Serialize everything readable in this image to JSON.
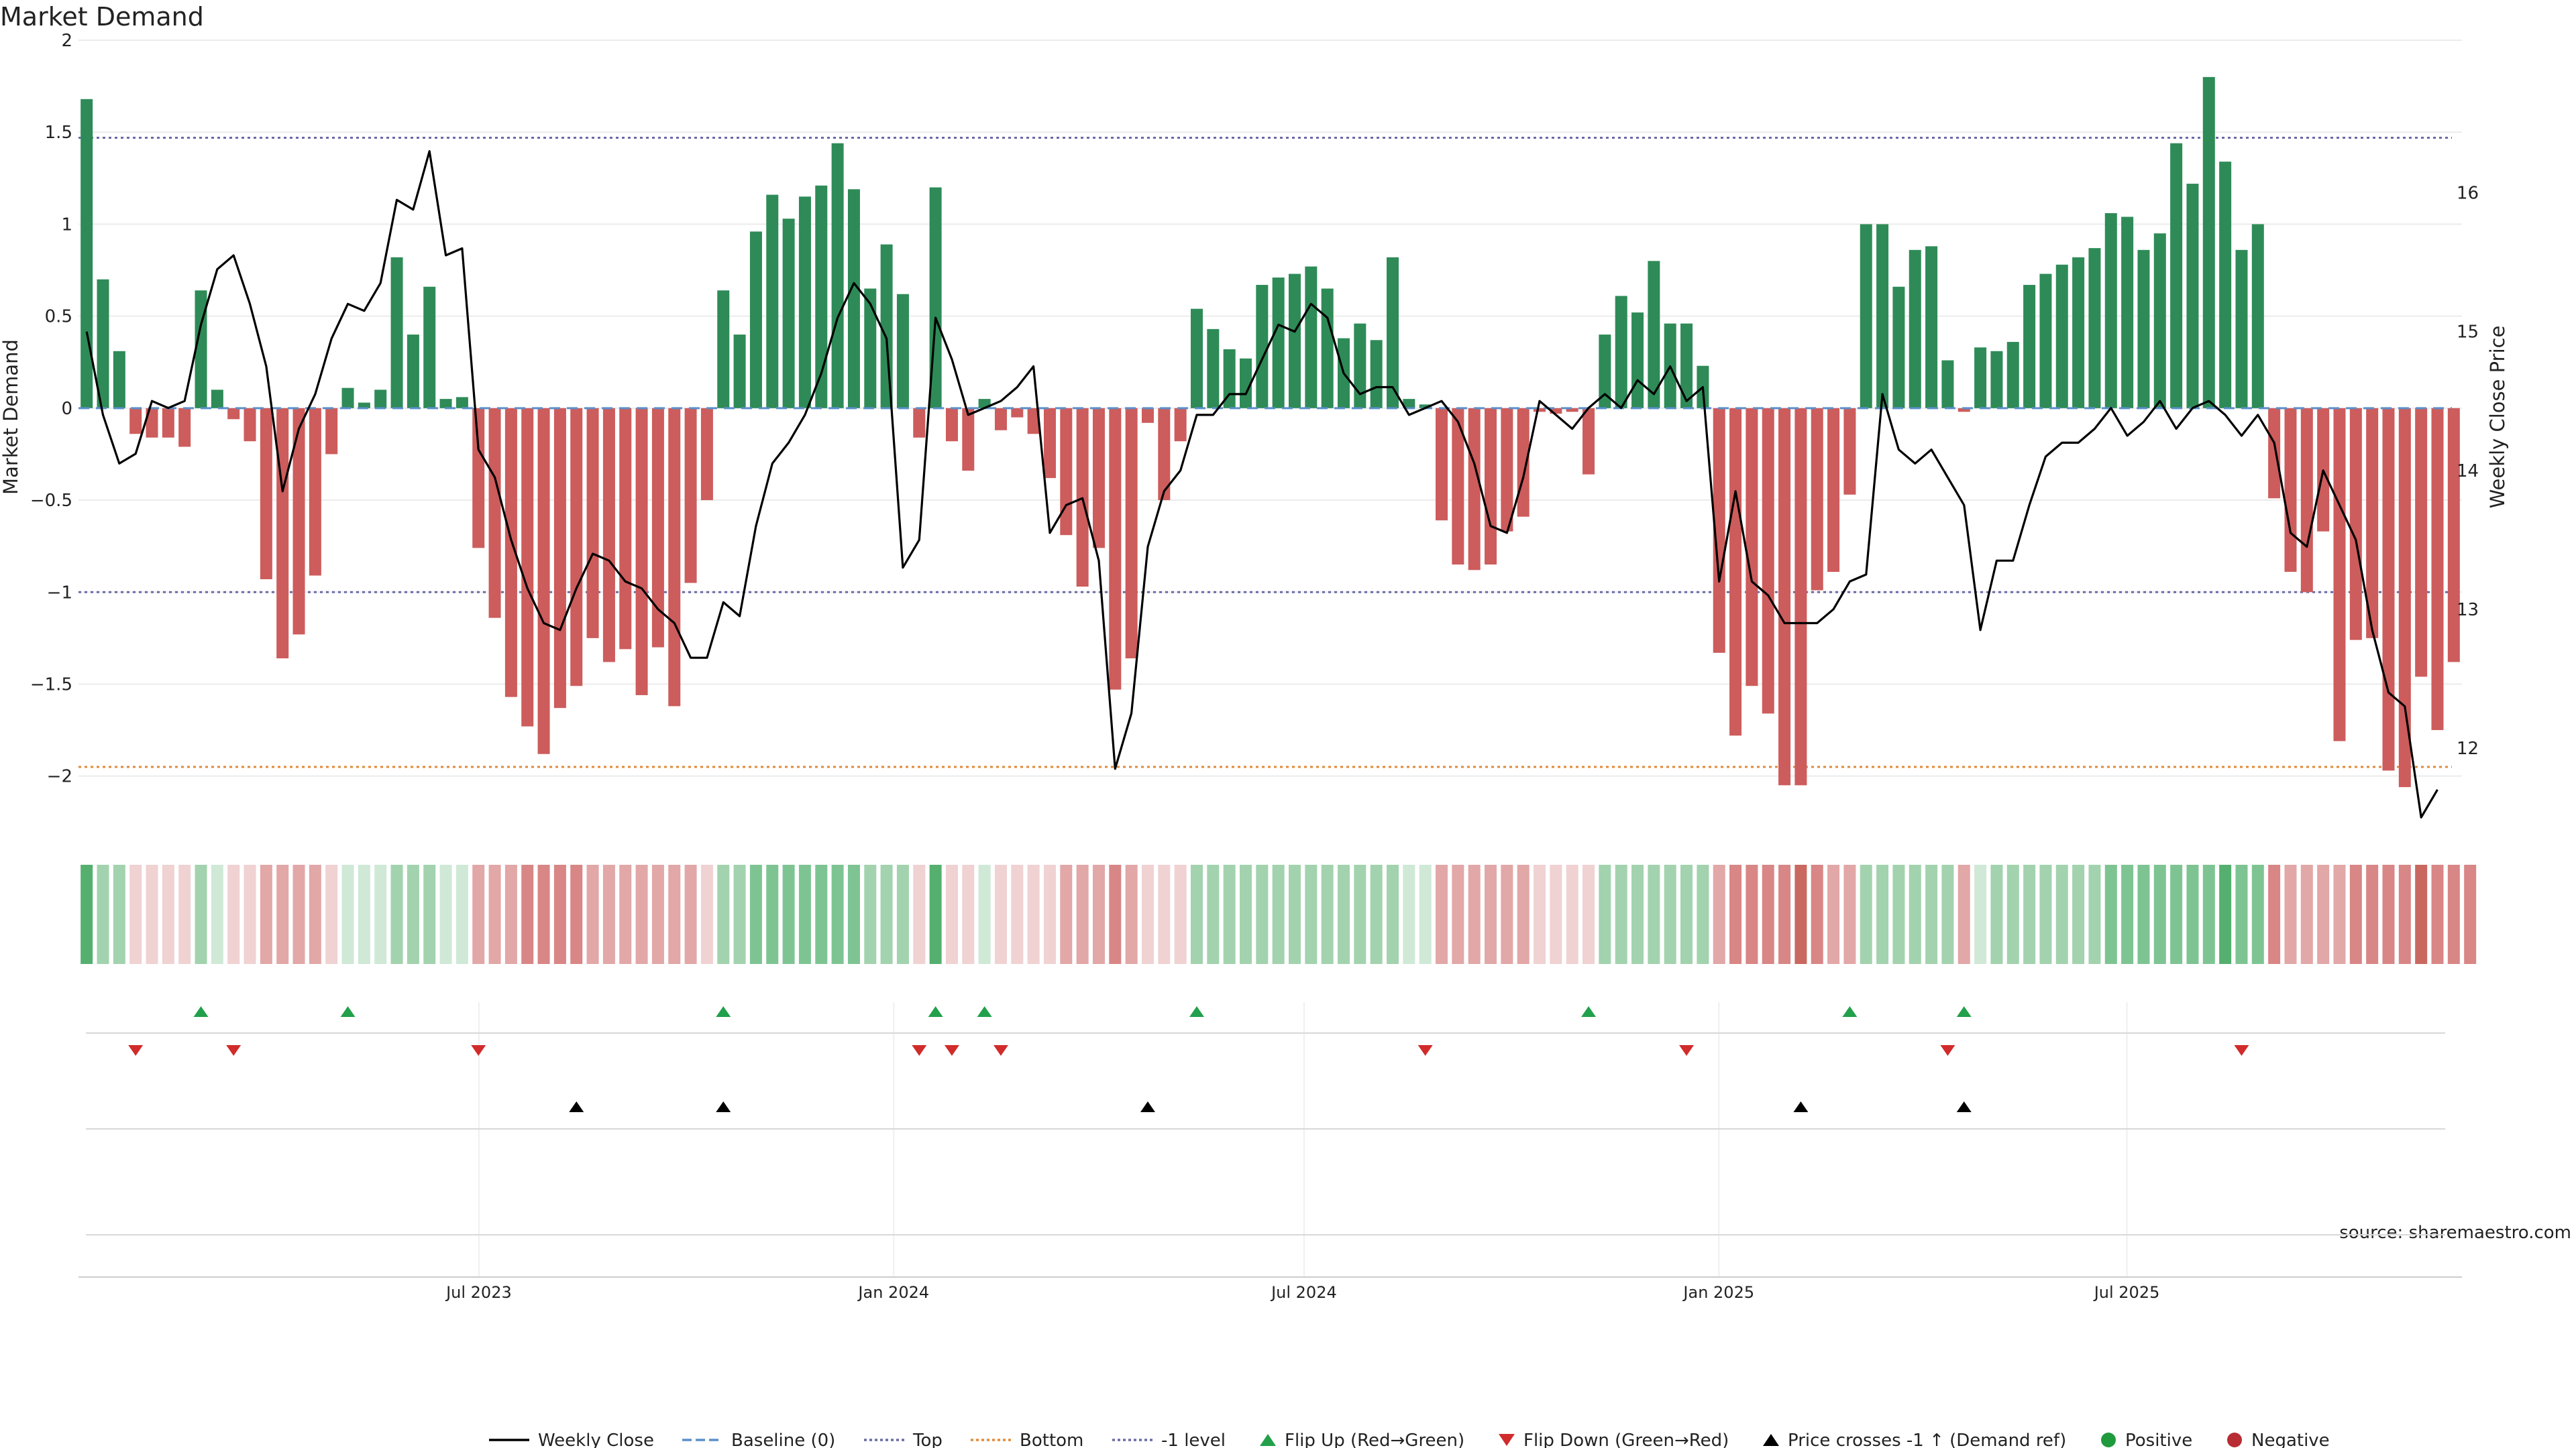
{
  "chart_data": {
    "type": "bar",
    "title": "Market Demand",
    "ylabel": "Market Demand",
    "y2label": "Weekly Close Price",
    "source": "source: sharemaestro.com",
    "ylim": [
      -2.3,
      2.0
    ],
    "y2lim": [
      11.4,
      17.1
    ],
    "yticks": [
      2,
      1.5,
      1,
      0.5,
      0,
      -0.5,
      -1,
      -1.5,
      -2
    ],
    "ytick_labels": [
      "2",
      "1.5",
      "1",
      "0.5",
      "0",
      "−0.5",
      "−1",
      "−1.5",
      "−2"
    ],
    "y2ticks": [
      16,
      15,
      14,
      13,
      12
    ],
    "y2tick_labels": [
      "16",
      "15",
      "14",
      "13",
      "12"
    ],
    "x_start": "2023-01-08",
    "x_end": "2025-11-23",
    "xticks": [
      {
        "date": "2023-07-01",
        "label": "Jul 2023"
      },
      {
        "date": "2024-01-01",
        "label": "Jan 2024"
      },
      {
        "date": "2024-07-01",
        "label": "Jul 2024"
      },
      {
        "date": "2025-01-01",
        "label": "Jan 2025"
      },
      {
        "date": "2025-07-01",
        "label": "Jul 2025"
      }
    ],
    "reference_lines": [
      {
        "name": "Top",
        "value": 1.47,
        "color": "#6a6aa8"
      },
      {
        "name": "Bottom",
        "value": -1.95,
        "color": "#e08a3a"
      },
      {
        "name": "-1 level",
        "value": -1.0,
        "color": "#6a6aa8"
      }
    ],
    "demand": [
      1.68,
      0.7,
      0.31,
      -0.14,
      -0.16,
      -0.16,
      -0.21,
      0.64,
      0.1,
      -0.06,
      -0.18,
      -0.93,
      -1.36,
      -1.23,
      -0.91,
      -0.25,
      0.11,
      0.03,
      0.1,
      0.82,
      0.4,
      0.66,
      0.05,
      0.06,
      -0.76,
      -1.14,
      -1.57,
      -1.73,
      -1.88,
      -1.63,
      -1.51,
      -1.25,
      -1.38,
      -1.31,
      -1.56,
      -1.3,
      -1.62,
      -0.95,
      -0.5,
      0.64,
      0.4,
      0.96,
      1.16,
      1.03,
      1.15,
      1.21,
      1.44,
      1.19,
      0.65,
      0.89,
      0.62,
      -0.16,
      1.2,
      -0.18,
      -0.34,
      0.05,
      -0.12,
      -0.05,
      -0.14,
      -0.38,
      -0.69,
      -0.97,
      -0.76,
      -1.53,
      -1.36,
      -0.08,
      -0.5,
      -0.18,
      0.54,
      0.43,
      0.32,
      0.27,
      0.67,
      0.71,
      0.73,
      0.77,
      0.65,
      0.38,
      0.46,
      0.37,
      0.82,
      0.05,
      0.02,
      -0.61,
      -0.85,
      -0.88,
      -0.85,
      -0.67,
      -0.59,
      -0.02,
      -0.03,
      -0.02,
      -0.36,
      0.4,
      0.61,
      0.52,
      0.8,
      0.46,
      0.46,
      0.23,
      -1.33,
      -1.78,
      -1.51,
      -1.66,
      -2.05,
      -2.05,
      -0.99,
      -0.89,
      -0.47,
      1.0,
      1.0,
      0.66,
      0.86,
      0.88,
      0.26,
      -0.02,
      0.33,
      0.31,
      0.36,
      0.67,
      0.73,
      0.78,
      0.82,
      0.87,
      1.06,
      1.04,
      0.86,
      0.95,
      1.44,
      1.22,
      1.8,
      1.34,
      0.86,
      1.0,
      -0.49,
      -0.89,
      -1.0,
      -0.67,
      -1.81,
      -1.26,
      -1.25,
      -1.97,
      -2.06,
      -1.46,
      -1.75,
      -1.38
    ],
    "weekly_close": [
      15.0,
      14.4,
      14.05,
      14.12,
      14.5,
      14.45,
      14.5,
      15.05,
      15.45,
      15.55,
      15.2,
      14.75,
      13.85,
      14.3,
      14.55,
      14.95,
      15.2,
      15.15,
      15.35,
      15.95,
      15.88,
      16.3,
      15.55,
      15.6,
      14.15,
      13.95,
      13.5,
      13.15,
      12.9,
      12.85,
      13.15,
      13.4,
      13.35,
      13.2,
      13.15,
      13.0,
      12.9,
      12.65,
      12.65,
      13.05,
      12.95,
      13.6,
      14.05,
      14.2,
      14.4,
      14.7,
      15.1,
      15.35,
      15.2,
      14.95,
      13.3,
      13.5,
      15.1,
      14.8,
      14.4,
      14.45,
      14.5,
      14.6,
      14.75,
      13.55,
      13.75,
      13.8,
      13.35,
      11.85,
      12.25,
      13.45,
      13.85,
      14.0,
      14.4,
      14.4,
      14.55,
      14.55,
      14.8,
      15.05,
      15.0,
      15.2,
      15.1,
      14.7,
      14.55,
      14.6,
      14.6,
      14.4,
      14.45,
      14.5,
      14.35,
      14.05,
      13.6,
      13.55,
      13.95,
      14.5,
      14.4,
      14.3,
      14.45,
      14.55,
      14.45,
      14.65,
      14.55,
      14.75,
      14.5,
      14.6,
      13.2,
      13.85,
      13.2,
      13.1,
      12.9,
      12.9,
      12.9,
      13.0,
      13.2,
      13.25,
      14.55,
      14.15,
      14.05,
      14.15,
      13.95,
      13.75,
      12.85,
      13.35,
      13.35,
      13.75,
      14.1,
      14.2,
      14.2,
      14.3,
      14.45,
      14.25,
      14.35,
      14.5,
      14.3,
      14.45,
      14.5,
      14.4,
      14.25,
      14.4,
      14.2,
      13.55,
      13.45,
      14.0,
      13.75,
      13.5,
      12.85,
      12.4,
      12.3,
      11.5,
      11.7
    ],
    "heat_strip_levels": [
      4,
      2,
      2,
      1,
      1,
      1,
      1,
      2,
      1,
      1,
      1,
      2,
      2,
      2,
      2,
      1,
      1,
      1,
      1,
      2,
      2,
      2,
      1,
      1,
      2,
      2,
      2,
      3,
      3,
      3,
      3,
      2,
      2,
      2,
      2,
      2,
      2,
      2,
      1,
      2,
      2,
      3,
      3,
      3,
      3,
      3,
      3,
      3,
      2,
      2,
      2,
      1,
      4,
      1,
      1,
      1,
      1,
      1,
      1,
      1,
      2,
      2,
      2,
      3,
      2,
      1,
      1,
      1,
      2,
      2,
      2,
      2,
      2,
      2,
      2,
      2,
      2,
      2,
      2,
      2,
      2,
      1,
      1,
      2,
      2,
      2,
      2,
      2,
      2,
      1,
      1,
      1,
      1,
      2,
      2,
      2,
      2,
      2,
      2,
      2,
      2,
      3,
      3,
      3,
      3,
      4,
      3,
      2,
      2,
      2,
      2,
      2,
      2,
      2,
      2,
      2,
      1,
      2,
      2,
      2,
      2,
      2,
      2,
      2,
      3,
      3,
      3,
      3,
      3,
      3,
      3,
      4,
      3,
      3,
      3,
      2,
      2,
      2,
      2,
      3,
      3,
      3,
      3,
      4,
      3,
      3,
      3
    ],
    "flip_up_weeks": [
      7,
      16,
      39,
      52,
      55,
      68,
      92,
      108,
      115
    ],
    "flip_down_weeks": [
      3,
      9,
      24,
      51,
      53,
      56,
      82,
      98,
      114,
      132
    ],
    "price_cross_weeks": [
      30,
      39,
      65,
      105,
      115
    ],
    "colors": {
      "positive": "#2e8b57",
      "negative": "#cd5c5c",
      "flip_up": "#22a04b",
      "flip_down": "#d12b2b",
      "price_line": "#000000",
      "baseline": "#5b8fc9",
      "legend_positive": "#1f9a3d",
      "legend_negative": "#b82c33"
    },
    "legend": [
      {
        "label": "Weekly Close",
        "symbol": "line-solid",
        "color": "#000000"
      },
      {
        "label": "Baseline (0)",
        "symbol": "line-dashed",
        "color": "#5b8fc9"
      },
      {
        "label": "Top",
        "symbol": "line-dotted",
        "color": "#6a6aa8"
      },
      {
        "label": "Bottom",
        "symbol": "line-dotted",
        "color": "#e08a3a"
      },
      {
        "label": "-1 level",
        "symbol": "line-dotted",
        "color": "#6a6aa8"
      },
      {
        "label": "Flip Up (Red→Green)",
        "symbol": "triangle-up",
        "color": "#22a04b"
      },
      {
        "label": "Flip Down (Green→Red)",
        "symbol": "triangle-down",
        "color": "#d12b2b"
      },
      {
        "label": "Price crosses -1 ↑ (Demand ref)",
        "symbol": "triangle-up",
        "color": "#000000"
      },
      {
        "label": "Positive",
        "symbol": "dot",
        "color": "#1f9a3d"
      },
      {
        "label": "Negative",
        "symbol": "dot",
        "color": "#b82c33"
      }
    ]
  }
}
